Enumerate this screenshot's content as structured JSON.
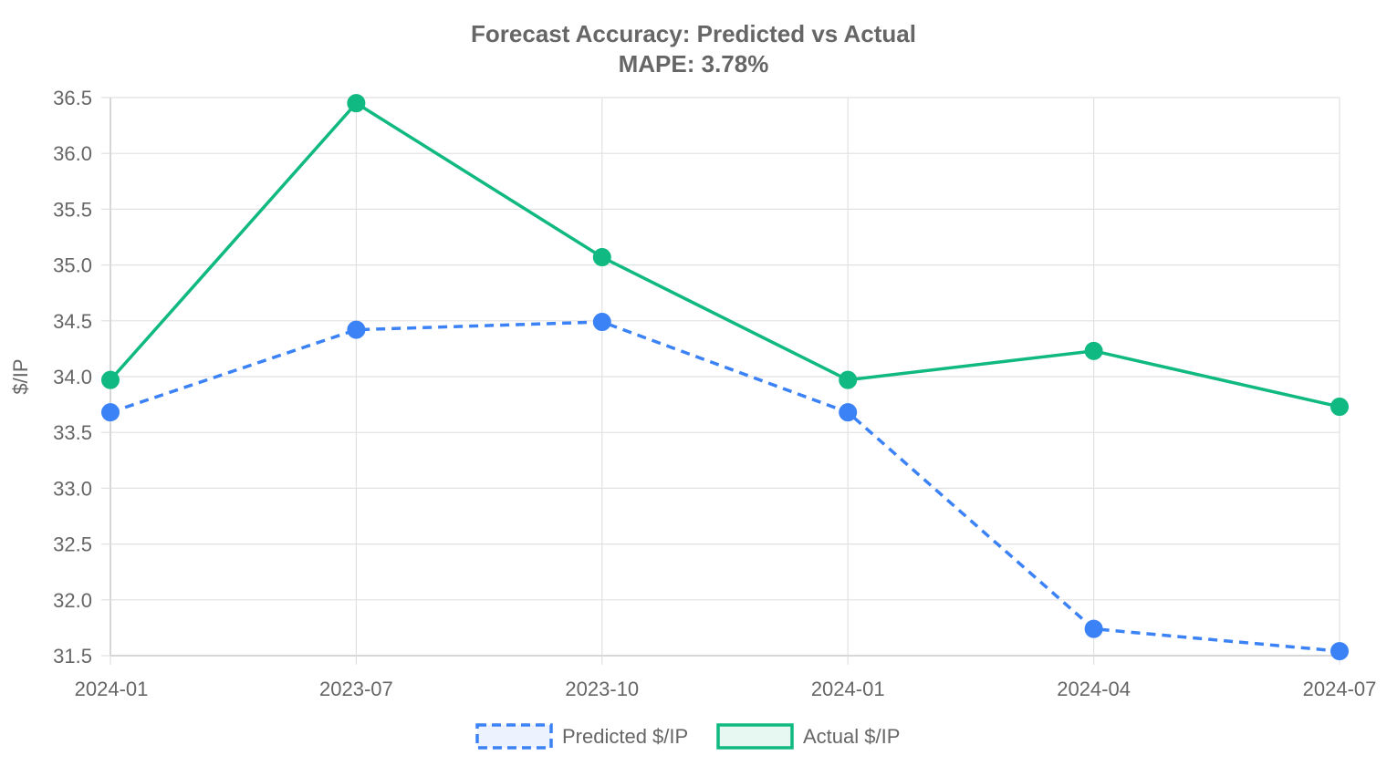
{
  "chart_data": {
    "type": "line",
    "title": "Forecast Accuracy: Predicted vs Actual",
    "subtitle": "MAPE: 3.78%",
    "xlabel": "",
    "ylabel": "$/IP",
    "categories": [
      "2024-01",
      "2023-07",
      "2023-10",
      "2024-01",
      "2024-04",
      "2024-07"
    ],
    "ylim": [
      31.5,
      36.5
    ],
    "yticks": [
      "36.5",
      "36.0",
      "35.5",
      "35.0",
      "34.5",
      "34.0",
      "33.5",
      "33.0",
      "32.5",
      "32.0",
      "31.5"
    ],
    "grid": true,
    "legend_position": "bottom",
    "series": [
      {
        "name": "Predicted $/IP",
        "values": [
          33.68,
          34.42,
          34.49,
          33.68,
          31.74,
          31.54
        ],
        "color": "#3b82f6",
        "line_style": "dashed"
      },
      {
        "name": "Actual $/IP",
        "values": [
          33.97,
          36.45,
          35.07,
          33.97,
          34.23,
          33.73
        ],
        "color": "#10b981",
        "line_style": "solid"
      }
    ]
  }
}
